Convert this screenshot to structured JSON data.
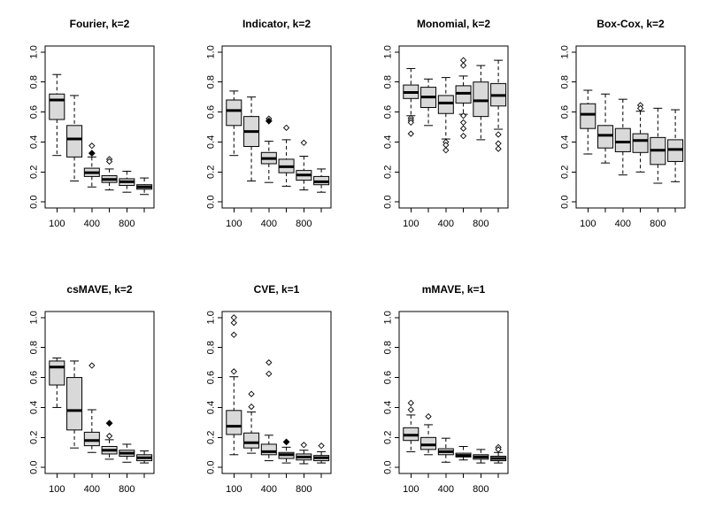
{
  "figure": {
    "background": "#ffffff",
    "box_fill": "#d9d9d9",
    "line_color": "#000000"
  },
  "chart_data": [
    {
      "type": "boxplot",
      "title": "Fourier, k=2",
      "x_positions": [
        100,
        200,
        400,
        600,
        800,
        1000
      ],
      "x_ticks": [
        {
          "index": 0,
          "label": "100"
        },
        {
          "index": 2,
          "label": "400"
        },
        {
          "index": 4,
          "label": "800"
        }
      ],
      "y_ticks": [
        "0.0",
        "0.2",
        "0.4",
        "0.6",
        "0.8",
        "1.0"
      ],
      "ylim": [
        0,
        1
      ],
      "boxes": [
        {
          "x": 100,
          "low": 0.31,
          "q1": 0.55,
          "median": 0.68,
          "q3": 0.72,
          "high": 0.85,
          "outliers": [],
          "outliers_filled": []
        },
        {
          "x": 200,
          "low": 0.14,
          "q1": 0.3,
          "median": 0.42,
          "q3": 0.51,
          "high": 0.71,
          "outliers": [],
          "outliers_filled": []
        },
        {
          "x": 400,
          "low": 0.1,
          "q1": 0.17,
          "median": 0.195,
          "q3": 0.225,
          "high": 0.3,
          "outliers": [
            0.375
          ],
          "outliers_filled": [
            0.325
          ]
        },
        {
          "x": 600,
          "low": 0.08,
          "q1": 0.13,
          "median": 0.15,
          "q3": 0.175,
          "high": 0.22,
          "outliers": [
            0.285,
            0.27
          ],
          "outliers_filled": []
        },
        {
          "x": 800,
          "low": 0.065,
          "q1": 0.11,
          "median": 0.135,
          "q3": 0.155,
          "high": 0.205,
          "outliers": [],
          "outliers_filled": []
        },
        {
          "x": 1000,
          "low": 0.05,
          "q1": 0.085,
          "median": 0.1,
          "q3": 0.115,
          "high": 0.16,
          "outliers": [],
          "outliers_filled": []
        }
      ]
    },
    {
      "type": "boxplot",
      "title": "Indicator, k=2",
      "x_positions": [
        100,
        200,
        400,
        600,
        800,
        1000
      ],
      "x_ticks": [
        {
          "index": 0,
          "label": "100"
        },
        {
          "index": 2,
          "label": "400"
        },
        {
          "index": 4,
          "label": "800"
        }
      ],
      "y_ticks": [
        "0.0",
        "0.2",
        "0.4",
        "0.6",
        "0.8",
        "1.0"
      ],
      "ylim": [
        0,
        1
      ],
      "boxes": [
        {
          "x": 100,
          "low": 0.31,
          "q1": 0.51,
          "median": 0.61,
          "q3": 0.68,
          "high": 0.74,
          "outliers": [],
          "outliers_filled": []
        },
        {
          "x": 200,
          "low": 0.14,
          "q1": 0.37,
          "median": 0.47,
          "q3": 0.57,
          "high": 0.7,
          "outliers": [],
          "outliers_filled": []
        },
        {
          "x": 400,
          "low": 0.13,
          "q1": 0.255,
          "median": 0.29,
          "q3": 0.33,
          "high": 0.405,
          "outliers": [
            0.555
          ],
          "outliers_filled": [
            0.54
          ]
        },
        {
          "x": 600,
          "low": 0.105,
          "q1": 0.195,
          "median": 0.235,
          "q3": 0.285,
          "high": 0.415,
          "outliers": [
            0.495
          ],
          "outliers_filled": []
        },
        {
          "x": 800,
          "low": 0.08,
          "q1": 0.145,
          "median": 0.18,
          "q3": 0.21,
          "high": 0.305,
          "outliers": [
            0.395
          ],
          "outliers_filled": []
        },
        {
          "x": 1000,
          "low": 0.065,
          "q1": 0.115,
          "median": 0.135,
          "q3": 0.17,
          "high": 0.22,
          "outliers": [],
          "outliers_filled": []
        }
      ]
    },
    {
      "type": "boxplot",
      "title": "Monomial, k=2",
      "x_positions": [
        100,
        200,
        400,
        600,
        800,
        1000
      ],
      "x_ticks": [
        {
          "index": 0,
          "label": "100"
        },
        {
          "index": 2,
          "label": "400"
        },
        {
          "index": 4,
          "label": "800"
        }
      ],
      "y_ticks": [
        "0.0",
        "0.2",
        "0.4",
        "0.6",
        "0.8",
        "1.0"
      ],
      "ylim": [
        0,
        1
      ],
      "boxes": [
        {
          "x": 100,
          "low": 0.575,
          "q1": 0.69,
          "median": 0.73,
          "q3": 0.78,
          "high": 0.89,
          "outliers": [
            0.56,
            0.545,
            0.53,
            0.455
          ],
          "outliers_filled": []
        },
        {
          "x": 200,
          "low": 0.51,
          "q1": 0.63,
          "median": 0.7,
          "q3": 0.765,
          "high": 0.82,
          "outliers": [],
          "outliers_filled": []
        },
        {
          "x": 400,
          "low": 0.42,
          "q1": 0.59,
          "median": 0.66,
          "q3": 0.71,
          "high": 0.83,
          "outliers": [
            0.4,
            0.38,
            0.345
          ],
          "outliers_filled": []
        },
        {
          "x": 600,
          "low": 0.585,
          "q1": 0.66,
          "median": 0.725,
          "q3": 0.775,
          "high": 0.84,
          "outliers": [
            0.945,
            0.91,
            0.575,
            0.53,
            0.49,
            0.44
          ],
          "outliers_filled": []
        },
        {
          "x": 800,
          "low": 0.415,
          "q1": 0.57,
          "median": 0.675,
          "q3": 0.8,
          "high": 0.91,
          "outliers": [],
          "outliers_filled": []
        },
        {
          "x": 1000,
          "low": 0.485,
          "q1": 0.64,
          "median": 0.71,
          "q3": 0.79,
          "high": 0.945,
          "outliers": [
            0.45,
            0.39,
            0.355
          ],
          "outliers_filled": []
        }
      ]
    },
    {
      "type": "boxplot",
      "title": "Box-Cox, k=2",
      "x_positions": [
        100,
        200,
        400,
        600,
        800,
        1000
      ],
      "x_ticks": [
        {
          "index": 0,
          "label": "100"
        },
        {
          "index": 2,
          "label": "400"
        },
        {
          "index": 4,
          "label": "800"
        }
      ],
      "y_ticks": [
        "0.0",
        "0.2",
        "0.4",
        "0.6",
        "0.8",
        "1.0"
      ],
      "ylim": [
        0,
        1
      ],
      "boxes": [
        {
          "x": 100,
          "low": 0.32,
          "q1": 0.49,
          "median": 0.585,
          "q3": 0.655,
          "high": 0.745,
          "outliers": [],
          "outliers_filled": []
        },
        {
          "x": 200,
          "low": 0.26,
          "q1": 0.36,
          "median": 0.445,
          "q3": 0.51,
          "high": 0.72,
          "outliers": [],
          "outliers_filled": []
        },
        {
          "x": 400,
          "low": 0.18,
          "q1": 0.335,
          "median": 0.4,
          "q3": 0.49,
          "high": 0.685,
          "outliers": [],
          "outliers_filled": []
        },
        {
          "x": 600,
          "low": 0.2,
          "q1": 0.33,
          "median": 0.41,
          "q3": 0.455,
          "high": 0.605,
          "outliers": [
            0.645,
            0.625
          ],
          "outliers_filled": []
        },
        {
          "x": 800,
          "low": 0.125,
          "q1": 0.25,
          "median": 0.345,
          "q3": 0.43,
          "high": 0.625,
          "outliers": [],
          "outliers_filled": []
        },
        {
          "x": 1000,
          "low": 0.135,
          "q1": 0.27,
          "median": 0.35,
          "q3": 0.415,
          "high": 0.615,
          "outliers": [],
          "outliers_filled": []
        }
      ]
    },
    {
      "type": "boxplot",
      "title": "csMAVE, k=2",
      "x_positions": [
        100,
        200,
        400,
        600,
        800,
        1000
      ],
      "x_ticks": [
        {
          "index": 0,
          "label": "100"
        },
        {
          "index": 2,
          "label": "400"
        },
        {
          "index": 4,
          "label": "800"
        }
      ],
      "y_ticks": [
        "0.0",
        "0.2",
        "0.4",
        "0.6",
        "0.8",
        "1.0"
      ],
      "ylim": [
        0,
        1
      ],
      "boxes": [
        {
          "x": 100,
          "low": 0.4,
          "q1": 0.55,
          "median": 0.67,
          "q3": 0.71,
          "high": 0.73,
          "outliers": [],
          "outliers_filled": []
        },
        {
          "x": 200,
          "low": 0.13,
          "q1": 0.25,
          "median": 0.38,
          "q3": 0.6,
          "high": 0.71,
          "outliers": [],
          "outliers_filled": []
        },
        {
          "x": 400,
          "low": 0.1,
          "q1": 0.145,
          "median": 0.18,
          "q3": 0.235,
          "high": 0.385,
          "outliers": [
            0.68
          ],
          "outliers_filled": []
        },
        {
          "x": 600,
          "low": 0.055,
          "q1": 0.09,
          "median": 0.115,
          "q3": 0.14,
          "high": 0.185,
          "outliers": [
            0.21
          ],
          "outliers_filled": [
            0.295
          ]
        },
        {
          "x": 800,
          "low": 0.035,
          "q1": 0.075,
          "median": 0.095,
          "q3": 0.115,
          "high": 0.155,
          "outliers": [],
          "outliers_filled": []
        },
        {
          "x": 1000,
          "low": 0.03,
          "q1": 0.045,
          "median": 0.065,
          "q3": 0.085,
          "high": 0.11,
          "outliers": [],
          "outliers_filled": []
        }
      ]
    },
    {
      "type": "boxplot",
      "title": "CVE, k=1",
      "x_positions": [
        100,
        200,
        400,
        600,
        800,
        1000
      ],
      "x_ticks": [
        {
          "index": 0,
          "label": "100"
        },
        {
          "index": 2,
          "label": "400"
        },
        {
          "index": 4,
          "label": "800"
        }
      ],
      "y_ticks": [
        "0.0",
        "0.2",
        "0.4",
        "0.6",
        "0.8",
        "1.0"
      ],
      "ylim": [
        0,
        1
      ],
      "boxes": [
        {
          "x": 100,
          "low": 0.085,
          "q1": 0.22,
          "median": 0.275,
          "q3": 0.38,
          "high": 0.605,
          "outliers": [
            1.0,
            0.965,
            0.885,
            0.64
          ],
          "outliers_filled": []
        },
        {
          "x": 200,
          "low": 0.095,
          "q1": 0.13,
          "median": 0.165,
          "q3": 0.23,
          "high": 0.37,
          "outliers": [
            0.49,
            0.405
          ],
          "outliers_filled": []
        },
        {
          "x": 400,
          "low": 0.045,
          "q1": 0.085,
          "median": 0.105,
          "q3": 0.155,
          "high": 0.215,
          "outliers": [
            0.7,
            0.625
          ],
          "outliers_filled": []
        },
        {
          "x": 600,
          "low": 0.03,
          "q1": 0.06,
          "median": 0.085,
          "q3": 0.1,
          "high": 0.135,
          "outliers": [],
          "outliers_filled": [
            0.17
          ]
        },
        {
          "x": 800,
          "low": 0.025,
          "q1": 0.05,
          "median": 0.07,
          "q3": 0.09,
          "high": 0.115,
          "outliers": [
            0.15
          ],
          "outliers_filled": []
        },
        {
          "x": 1000,
          "low": 0.03,
          "q1": 0.045,
          "median": 0.065,
          "q3": 0.08,
          "high": 0.105,
          "outliers": [
            0.145
          ],
          "outliers_filled": []
        }
      ]
    },
    {
      "type": "boxplot",
      "title": "mMAVE, k=1",
      "x_positions": [
        100,
        200,
        400,
        600,
        800,
        1000
      ],
      "x_ticks": [
        {
          "index": 0,
          "label": "100"
        },
        {
          "index": 2,
          "label": "400"
        },
        {
          "index": 4,
          "label": "800"
        }
      ],
      "y_ticks": [
        "0.0",
        "0.2",
        "0.4",
        "0.6",
        "0.8",
        "1.0"
      ],
      "ylim": [
        0,
        1
      ],
      "boxes": [
        {
          "x": 100,
          "low": 0.105,
          "q1": 0.18,
          "median": 0.215,
          "q3": 0.265,
          "high": 0.35,
          "outliers": [
            0.43,
            0.385
          ],
          "outliers_filled": []
        },
        {
          "x": 200,
          "low": 0.085,
          "q1": 0.12,
          "median": 0.15,
          "q3": 0.2,
          "high": 0.285,
          "outliers": [
            0.34
          ],
          "outliers_filled": []
        },
        {
          "x": 400,
          "low": 0.035,
          "q1": 0.085,
          "median": 0.105,
          "q3": 0.125,
          "high": 0.195,
          "outliers": [],
          "outliers_filled": []
        },
        {
          "x": 600,
          "low": 0.05,
          "q1": 0.07,
          "median": 0.08,
          "q3": 0.095,
          "high": 0.14,
          "outliers": [],
          "outliers_filled": []
        },
        {
          "x": 800,
          "low": 0.03,
          "q1": 0.055,
          "median": 0.07,
          "q3": 0.085,
          "high": 0.12,
          "outliers": [],
          "outliers_filled": []
        },
        {
          "x": 1000,
          "low": 0.03,
          "q1": 0.045,
          "median": 0.06,
          "q3": 0.075,
          "high": 0.1,
          "outliers": [
            0.135,
            0.12
          ],
          "outliers_filled": []
        }
      ]
    }
  ]
}
